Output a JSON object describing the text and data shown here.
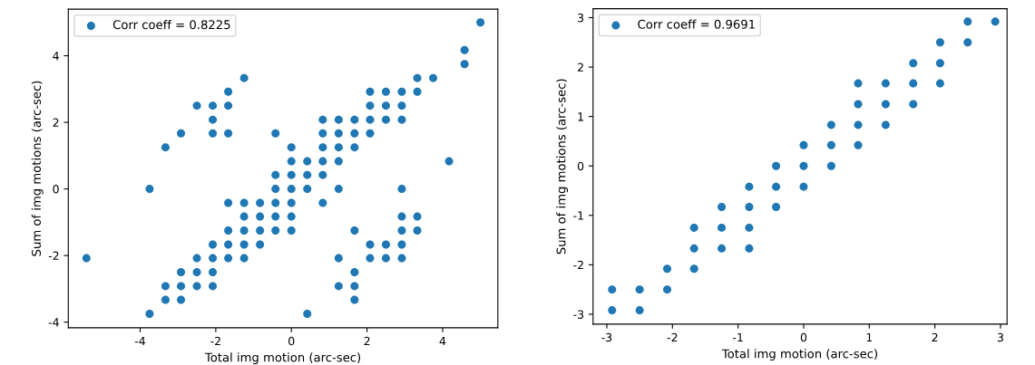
{
  "chart_data": [
    {
      "type": "scatter",
      "xlabel": "Total img motion (arc-sec)",
      "ylabel": "Sum of img motions (arc-sec)",
      "legend": "top left",
      "marker": "circle",
      "grid": false,
      "xlim": [
        -5.9,
        5.46
      ],
      "ylim": [
        -4.17,
        5.4
      ],
      "xticks": [
        -4,
        -2,
        0,
        2,
        4
      ],
      "yticks": [
        -4,
        -2,
        0,
        2,
        4
      ],
      "series": [
        {
          "name": "Corr coeff = 0.8225",
          "color": "#1f77b4",
          "x": [
            5,
            4.58,
            4.58,
            -1.25,
            -1.67,
            -2.5,
            -2.08,
            -1.67,
            -2.08,
            -2.92,
            -2.08,
            -1.67,
            -3.33,
            3.33,
            3.75,
            2.08,
            2.5,
            2.92,
            3.33,
            2.08,
            2.5,
            2.92,
            0.83,
            1.25,
            1.67,
            2.08,
            2.5,
            2.92,
            -0.42,
            0.83,
            1.25,
            1.67,
            2.08,
            0,
            0.83,
            1.25,
            1.67,
            0,
            0.42,
            0.83,
            1.25,
            4.17,
            -0.42,
            0,
            0.42,
            0.83,
            -3.75,
            -0.42,
            0,
            0.42,
            1.25,
            2.92,
            -1.67,
            -1.25,
            -0.83,
            -0.42,
            0,
            0.83,
            -1.25,
            -0.83,
            -0.42,
            0,
            2.92,
            3.33,
            -1.67,
            -1.25,
            -0.83,
            -0.42,
            0,
            1.67,
            2.92,
            3.33,
            -2.08,
            -1.67,
            -1.25,
            -0.83,
            2.08,
            2.5,
            2.92,
            -5.42,
            -2.5,
            -2.08,
            -1.67,
            -1.25,
            1.25,
            2.08,
            2.5,
            2.92,
            -2.92,
            -2.5,
            -2.08,
            1.67,
            -3.33,
            -2.92,
            -2.5,
            -2.08,
            1.25,
            1.67,
            -3.33,
            -2.92,
            1.67,
            -3.75,
            0.42
          ],
          "values": [
            5,
            4.17,
            3.75,
            3.33,
            2.92,
            2.5,
            2.5,
            2.5,
            2.08,
            1.67,
            1.67,
            1.67,
            1.25,
            3.33,
            3.33,
            2.92,
            2.92,
            2.92,
            2.92,
            2.5,
            2.5,
            2.5,
            2.08,
            2.08,
            2.08,
            2.08,
            2.08,
            2.08,
            1.67,
            1.67,
            1.67,
            1.67,
            1.67,
            1.25,
            1.25,
            1.25,
            1.25,
            0.83,
            0.83,
            0.83,
            0.83,
            0.83,
            0.42,
            0.42,
            0.42,
            0.42,
            0,
            0,
            0,
            0,
            0,
            0,
            -0.42,
            -0.42,
            -0.42,
            -0.42,
            -0.42,
            -0.42,
            -0.83,
            -0.83,
            -0.83,
            -0.83,
            -0.83,
            -0.83,
            -1.25,
            -1.25,
            -1.25,
            -1.25,
            -1.25,
            -1.25,
            -1.25,
            -1.25,
            -1.67,
            -1.67,
            -1.67,
            -1.67,
            -1.67,
            -1.67,
            -1.67,
            -2.08,
            -2.08,
            -2.08,
            -2.08,
            -2.08,
            -2.08,
            -2.08,
            -2.08,
            -2.08,
            -2.5,
            -2.5,
            -2.5,
            -2.5,
            -2.92,
            -2.92,
            -2.92,
            -2.92,
            -2.92,
            -2.92,
            -3.33,
            -3.33,
            -3.33,
            -3.75,
            -3.75
          ]
        }
      ]
    },
    {
      "type": "scatter",
      "xlabel": "Total img motion (arc-sec)",
      "ylabel": "Sum of img motions (arc-sec)",
      "legend": "top left",
      "marker": "circle",
      "grid": false,
      "xlim": [
        -3.21,
        3.1
      ],
      "ylim": [
        -3.2,
        3.18
      ],
      "xticks": [
        -3,
        -2,
        -1,
        0,
        1,
        2,
        3
      ],
      "yticks": [
        -3,
        -2,
        -1,
        0,
        1,
        2,
        3
      ],
      "series": [
        {
          "name": "Corr coeff = 0.9691",
          "color": "#1f77b4",
          "x": [
            2.92,
            2.5,
            2.5,
            2.08,
            1.67,
            2.08,
            0.83,
            1.25,
            1.67,
            2.08,
            0.83,
            1.25,
            1.67,
            0.42,
            0.83,
            1.25,
            0,
            0.42,
            0.83,
            -0.42,
            0,
            0.42,
            -0.83,
            -0.42,
            0,
            -1.25,
            -0.83,
            -0.42,
            -1.67,
            -1.25,
            -0.83,
            -1.67,
            -1.25,
            -0.83,
            -2.08,
            -1.67,
            -2.92,
            -2.5,
            -2.08,
            -2.92,
            -2.5
          ],
          "values": [
            2.92,
            2.92,
            2.5,
            2.5,
            2.08,
            2.08,
            1.67,
            1.67,
            1.67,
            1.67,
            1.25,
            1.25,
            1.25,
            0.83,
            0.83,
            0.83,
            0.42,
            0.42,
            0.42,
            0,
            0,
            0,
            -0.42,
            -0.42,
            -0.42,
            -0.83,
            -0.83,
            -0.83,
            -1.25,
            -1.25,
            -1.25,
            -1.67,
            -1.67,
            -1.67,
            -2.08,
            -2.08,
            -2.5,
            -2.5,
            -2.5,
            -2.92,
            -2.92
          ]
        }
      ]
    }
  ]
}
